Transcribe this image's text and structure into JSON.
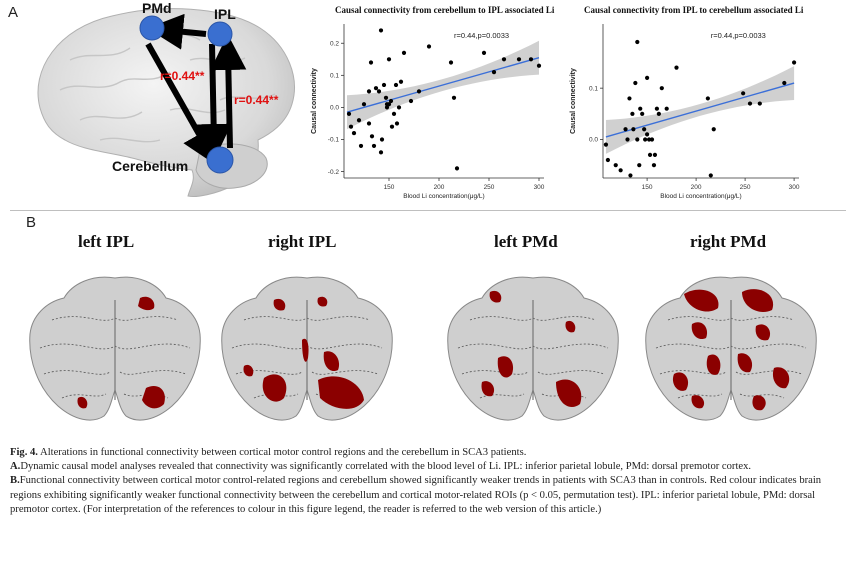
{
  "panel_a": {
    "letter": "A",
    "diagram": {
      "nodes": {
        "pmd": "PMd",
        "ipl": "IPL",
        "cerebellum": "Cerebellum"
      },
      "edge_labels": [
        "r=0.44**",
        "r=0.44**"
      ],
      "node_color": "#3a6fd0",
      "label_color": "#e01010"
    }
  },
  "chart_data": [
    {
      "type": "scatter",
      "title": "Causal connectivity from cerebellum to IPL associated Li",
      "annotation": "r=0.44,p=0.0033",
      "xlabel": "Blood Li concentration(μg/L)",
      "ylabel": "Causal connectivity",
      "xticks": [
        150,
        200,
        250,
        300
      ],
      "yticks": [
        -0.2,
        -0.1,
        0.0,
        0.1,
        0.2
      ],
      "xlim": [
        105,
        305
      ],
      "ylim": [
        -0.22,
        0.26
      ],
      "points": [
        [
          110,
          -0.02
        ],
        [
          112,
          -0.06
        ],
        [
          115,
          -0.08
        ],
        [
          120,
          -0.04
        ],
        [
          122,
          -0.12
        ],
        [
          125,
          0.01
        ],
        [
          130,
          0.05
        ],
        [
          130,
          -0.05
        ],
        [
          132,
          0.14
        ],
        [
          133,
          -0.09
        ],
        [
          135,
          -0.12
        ],
        [
          137,
          0.06
        ],
        [
          140,
          0.05
        ],
        [
          142,
          -0.14
        ],
        [
          142,
          0.24
        ],
        [
          143,
          -0.1
        ],
        [
          145,
          0.07
        ],
        [
          147,
          0.03
        ],
        [
          148,
          0.01
        ],
        [
          148,
          0.0
        ],
        [
          150,
          0.01
        ],
        [
          150,
          0.15
        ],
        [
          152,
          0.02
        ],
        [
          153,
          -0.06
        ],
        [
          155,
          -0.02
        ],
        [
          157,
          0.07
        ],
        [
          158,
          -0.05
        ],
        [
          160,
          0.0
        ],
        [
          162,
          0.08
        ],
        [
          165,
          0.17
        ],
        [
          172,
          0.02
        ],
        [
          180,
          0.05
        ],
        [
          190,
          0.19
        ],
        [
          212,
          0.14
        ],
        [
          215,
          0.03
        ],
        [
          218,
          -0.19
        ],
        [
          245,
          0.17
        ],
        [
          255,
          0.11
        ],
        [
          265,
          0.15
        ],
        [
          280,
          0.15
        ],
        [
          292,
          0.15
        ],
        [
          300,
          0.13
        ]
      ],
      "trend": {
        "x": [
          108,
          300
        ],
        "y": [
          -0.015,
          0.155
        ]
      },
      "point_color": "#000000",
      "line_color": "#3b6fd8",
      "band_color": "#c8c8c8"
    },
    {
      "type": "scatter",
      "title": "Causal connectivity from IPL to cerebellum associated Li",
      "annotation": "r=0.44,p=0.0033",
      "xlabel": "Blood Li concentration(μg/L)",
      "ylabel": "Causal connectivity",
      "xticks": [
        150,
        200,
        250,
        300
      ],
      "yticks": [
        0.0,
        0.1
      ],
      "xlim": [
        105,
        305
      ],
      "ylim": [
        -0.075,
        0.225
      ],
      "points": [
        [
          108,
          -0.01
        ],
        [
          110,
          -0.04
        ],
        [
          118,
          -0.05
        ],
        [
          123,
          -0.06
        ],
        [
          128,
          0.02
        ],
        [
          130,
          0.0
        ],
        [
          132,
          0.08
        ],
        [
          133,
          -0.07
        ],
        [
          135,
          0.05
        ],
        [
          136,
          0.02
        ],
        [
          138,
          0.11
        ],
        [
          140,
          0.19
        ],
        [
          140,
          0.0
        ],
        [
          142,
          -0.05
        ],
        [
          143,
          0.06
        ],
        [
          145,
          0.05
        ],
        [
          147,
          0.02
        ],
        [
          148,
          0.0
        ],
        [
          150,
          0.01
        ],
        [
          150,
          0.12
        ],
        [
          152,
          0.0
        ],
        [
          153,
          -0.03
        ],
        [
          155,
          0.0
        ],
        [
          157,
          -0.05
        ],
        [
          158,
          -0.03
        ],
        [
          160,
          0.06
        ],
        [
          162,
          0.05
        ],
        [
          165,
          0.1
        ],
        [
          170,
          0.06
        ],
        [
          180,
          0.14
        ],
        [
          212,
          0.08
        ],
        [
          215,
          -0.07
        ],
        [
          218,
          0.02
        ],
        [
          248,
          0.09
        ],
        [
          255,
          0.07
        ],
        [
          265,
          0.07
        ],
        [
          290,
          0.11
        ],
        [
          300,
          0.15
        ]
      ],
      "trend": {
        "x": [
          108,
          300
        ],
        "y": [
          0.005,
          0.11
        ]
      },
      "point_color": "#000000",
      "line_color": "#3b6fd8",
      "band_color": "#c8c8c8"
    }
  ],
  "panel_b": {
    "letter": "B",
    "titles": [
      "left IPL",
      "right IPL",
      "left PMd",
      "right PMd"
    ],
    "highlight_color": "#8b0000"
  },
  "caption": {
    "fig_label": "Fig. 4.",
    "fig_text": "Alterations in functional connectivity between cortical motor control regions and the cerebellum in SCA3 patients.",
    "a_label": "A.",
    "a_text": "Dynamic causal model analyses revealed that connectivity was significantly correlated with the blood level of Li. IPL: inferior parietal lobule, PMd: dorsal premotor cortex.",
    "b_label": "B.",
    "b_text": "Functional connectivity between cortical motor control-related regions and cerebellum showed significantly weaker trends in patients with SCA3 than in controls. Red colour indicates brain regions exhibiting significantly weaker functional connectivity between the cerebellum and cortical motor-related ROIs (p < 0.05, permutation test). IPL: inferior parietal lobule, PMd: dorsal premotor cortex. (For interpretation of the references to colour in this figure legend, the reader is referred to the web version of this article.)"
  }
}
